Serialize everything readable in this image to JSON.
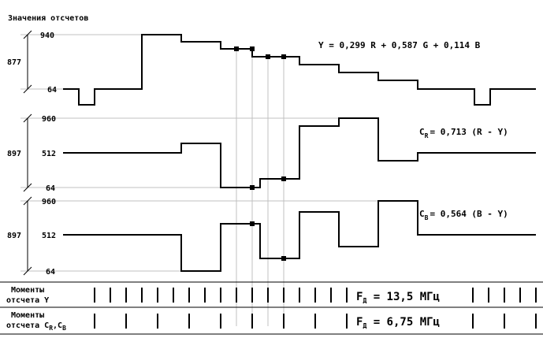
{
  "title": "Значения отсчетов",
  "panels": [
    {
      "id": "y",
      "span_label": "877",
      "top_label": "940",
      "bottom_label": "64",
      "formula": {
        "main": "Y = 0,299 R + 0,587 G + 0,114 B"
      }
    },
    {
      "id": "cr",
      "span_label": "897",
      "top_label": "960",
      "mid_label": "512",
      "bottom_label": "64",
      "formula": {
        "prefix": "C",
        "sub": "R",
        "rest": "= 0,713 (R - Y)"
      }
    },
    {
      "id": "cb",
      "span_label": "897",
      "top_label": "960",
      "mid_label": "512",
      "bottom_label": "64",
      "formula": {
        "prefix": "C",
        "sub": "B",
        "rest": "= 0,564 (B - Y)"
      }
    }
  ],
  "moments_y": {
    "line1": "Моменты",
    "line2": "отсчета Y",
    "freq_prefix": "F",
    "freq_sub": "Д",
    "freq_rest": " = 13,5 МГц"
  },
  "moments_c": {
    "line1": "Моменты",
    "line2_main": "отсчета C",
    "sub1": "R",
    "comma": ",C",
    "sub2": "B",
    "freq_prefix": "F",
    "freq_sub": "Д",
    "freq_rest": " = 6,75 МГц"
  },
  "colors": {
    "ink": "#000000",
    "grid": "#c0c0c0",
    "background": "#ffffff"
  }
}
